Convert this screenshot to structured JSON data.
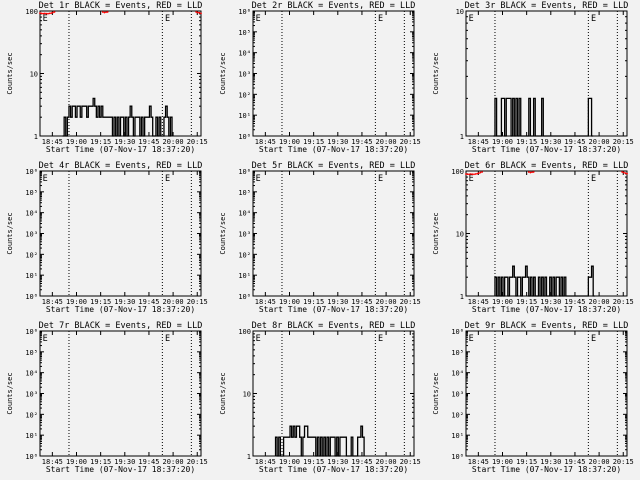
{
  "chart_data": {
    "type": "line",
    "time_axis": {
      "xlabel": "Start Time (07-Nov-17 18:37:20)",
      "ylabel": "Counts/sec",
      "xlim_minutes_from_start": [
        0,
        100
      ],
      "tick_minutes": [
        7.67,
        22.67,
        37.67,
        52.67,
        67.67,
        82.67,
        97.67
      ],
      "tick_labels": [
        "18:45",
        "19:00",
        "19:15",
        "19:30",
        "19:45",
        "20:00",
        "20:15"
      ],
      "dotted_lines_minutes": [
        18,
        76,
        94
      ],
      "marker_label": "E",
      "marker_minutes": [
        1,
        77
      ]
    },
    "panels": [
      {
        "title": "Det 1r BLACK = Events, RED = LLD",
        "ylim": [
          1,
          100
        ],
        "yticks": [
          "1",
          "10",
          "100"
        ],
        "yvals": [
          1,
          10,
          100
        ],
        "events_start_minute": 14,
        "events": [
          1,
          2,
          1,
          2,
          3,
          2,
          3,
          3,
          2,
          3,
          3,
          2,
          3,
          3,
          3,
          2,
          3,
          3,
          3,
          4,
          3,
          2,
          3,
          2,
          3,
          2,
          2,
          2,
          2,
          2,
          2,
          1,
          2,
          1,
          2,
          1,
          2,
          2,
          1,
          2,
          1,
          2,
          3,
          2,
          1,
          2,
          2,
          2,
          1,
          2,
          1,
          2,
          2,
          2,
          3,
          2,
          1,
          1,
          2,
          1,
          2,
          1,
          1,
          2,
          3,
          2,
          1,
          2
        ],
        "lld": [
          [
            0,
            96
          ],
          [
            1,
            95
          ],
          [
            2,
            94
          ],
          [
            3,
            95
          ],
          [
            4,
            94
          ],
          [
            5,
            94
          ],
          [
            6,
            95
          ],
          [
            7,
            96
          ],
          [
            8,
            98
          ],
          [
            9,
            100
          ],
          [
            39,
            100
          ],
          [
            40,
            98
          ],
          [
            41,
            99
          ],
          [
            42,
            100
          ],
          [
            97,
            100
          ],
          [
            98,
            98
          ],
          [
            99,
            97
          ],
          [
            100,
            95
          ]
        ]
      },
      {
        "title": "Det 2r BLACK = Events, RED = LLD",
        "ylim": [
          1,
          1000000
        ],
        "yticks": [
          "10⁰",
          "10¹",
          "10²",
          "10³",
          "10⁴",
          "10⁵",
          "10⁶"
        ],
        "yvals": [
          1,
          10,
          100,
          1000,
          10000,
          100000,
          1000000
        ],
        "events_start_minute": 0,
        "events": [],
        "lld": []
      },
      {
        "title": "Det 3r BLACK = Events, RED = LLD",
        "ylim": [
          1,
          10
        ],
        "yticks": [
          "1",
          "10"
        ],
        "yvals": [
          1,
          10
        ],
        "events_start_minute": 17,
        "events": [
          1,
          2,
          1,
          1,
          0,
          2,
          2,
          1,
          2,
          2,
          2,
          1,
          2,
          1,
          2,
          0,
          2,
          1,
          0,
          0,
          0,
          0,
          2,
          1,
          0,
          2,
          0,
          1,
          0,
          0,
          2,
          0,
          0,
          0,
          0,
          0,
          0,
          0,
          0,
          0,
          0,
          0,
          0,
          0,
          0,
          0,
          0,
          0,
          0,
          0,
          0,
          0,
          0,
          0,
          0,
          0,
          0,
          0,
          0,
          2,
          2,
          1
        ],
        "lld": []
      },
      {
        "title": "Det 4r BLACK = Events, RED = LLD",
        "ylim": [
          1,
          1000000
        ],
        "yticks": [
          "10⁰",
          "10¹",
          "10²",
          "10³",
          "10⁴",
          "10⁵",
          "10⁶"
        ],
        "yvals": [
          1,
          10,
          100,
          1000,
          10000,
          100000,
          1000000
        ],
        "events_start_minute": 0,
        "events": [],
        "lld": []
      },
      {
        "title": "Det 5r BLACK = Events, RED = LLD",
        "ylim": [
          1,
          1000000
        ],
        "yticks": [
          "10⁰",
          "10¹",
          "10²",
          "10³",
          "10⁴",
          "10⁵",
          "10⁶"
        ],
        "yvals": [
          1,
          10,
          100,
          1000,
          10000,
          100000,
          1000000
        ],
        "events_start_minute": 0,
        "events": [],
        "lld": []
      },
      {
        "title": "Det 6r BLACK = Events, RED = LLD",
        "ylim": [
          1,
          100
        ],
        "yticks": [
          "1",
          "10",
          "100"
        ],
        "yvals": [
          1,
          10,
          100
        ],
        "events_start_minute": 18,
        "events": [
          2,
          1,
          2,
          1,
          2,
          1,
          2,
          2,
          1,
          2,
          2,
          3,
          2,
          1,
          2,
          2,
          1,
          2,
          2,
          3,
          2,
          1,
          2,
          1,
          2,
          1,
          1,
          2,
          1,
          2,
          1,
          2,
          1,
          1,
          2,
          1,
          2,
          1,
          2,
          2,
          1,
          2,
          1,
          2,
          1,
          1,
          0,
          0,
          0,
          0,
          0,
          0,
          0,
          0,
          0,
          0,
          0,
          0,
          2,
          2,
          3,
          1
        ],
        "lld": [
          [
            0,
            93
          ],
          [
            1,
            92
          ],
          [
            2,
            92
          ],
          [
            3,
            93
          ],
          [
            4,
            92
          ],
          [
            5,
            92
          ],
          [
            6,
            93
          ],
          [
            7,
            94
          ],
          [
            8,
            96
          ],
          [
            9,
            98
          ],
          [
            10,
            100
          ],
          [
            39,
            100
          ],
          [
            40,
            98
          ],
          [
            41,
            99
          ],
          [
            42,
            100
          ],
          [
            97,
            100
          ],
          [
            98,
            98
          ],
          [
            99,
            96
          ],
          [
            100,
            94
          ]
        ]
      },
      {
        "title": "Det 7r BLACK = Events, RED = LLD",
        "ylim": [
          1,
          1000000
        ],
        "yticks": [
          "10⁰",
          "10¹",
          "10²",
          "10³",
          "10⁴",
          "10⁵",
          "10⁶"
        ],
        "yvals": [
          1,
          10,
          100,
          1000,
          10000,
          100000,
          1000000
        ],
        "events_start_minute": 0,
        "events": [],
        "lld": []
      },
      {
        "title": "Det 8r BLACK = Events, RED = LLD",
        "ylim": [
          1,
          100
        ],
        "yticks": [
          "1",
          "10",
          "100"
        ],
        "yvals": [
          1,
          10,
          100
        ],
        "events_start_minute": 14,
        "events": [
          2,
          1,
          2,
          1,
          1,
          2,
          2,
          2,
          2,
          3,
          2,
          3,
          2,
          3,
          3,
          2,
          1,
          2,
          3,
          3,
          2,
          2,
          2,
          2,
          2,
          1,
          2,
          1,
          2,
          1,
          2,
          1,
          2,
          1,
          2,
          2,
          2,
          1,
          2,
          1,
          2,
          2,
          2,
          2,
          1,
          1,
          1,
          2,
          1,
          1,
          1,
          2,
          2,
          3,
          2
        ],
        "lld": []
      },
      {
        "title": "Det 9r BLACK = Events, RED = LLD",
        "ylim": [
          1,
          1000000
        ],
        "yticks": [
          "10⁰",
          "10¹",
          "10²",
          "10³",
          "10⁴",
          "10⁵",
          "10⁶"
        ],
        "yvals": [
          1,
          10,
          100,
          1000,
          10000,
          100000,
          1000000
        ],
        "events_start_minute": 0,
        "events": [],
        "lld": []
      }
    ],
    "colors": {
      "events": "#000000",
      "lld": "#ff0000",
      "background": "#f2f2f2"
    }
  }
}
